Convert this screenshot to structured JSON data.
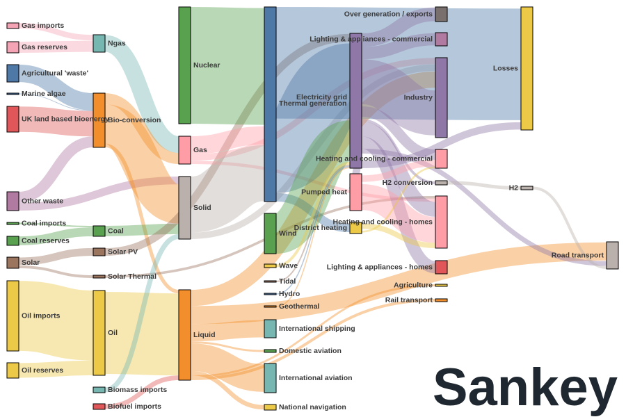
{
  "title": "Sankey",
  "chart_data": {
    "type": "sankey",
    "nodes": [
      {
        "id": "gas_imports",
        "label": "Gas imports",
        "color": "#f4a4b4"
      },
      {
        "id": "gas_reserves",
        "label": "Gas reserves",
        "color": "#f4a4b4"
      },
      {
        "id": "agri_waste",
        "label": "Agricultural 'waste'",
        "color": "#4e79a7"
      },
      {
        "id": "marine_algae",
        "label": "Marine algae",
        "color": "#4e79a7"
      },
      {
        "id": "uk_bio",
        "label": "UK land based bioenergy",
        "color": "#e15759"
      },
      {
        "id": "other_waste",
        "label": "Other waste",
        "color": "#b07aa1"
      },
      {
        "id": "coal_imports",
        "label": "Coal imports",
        "color": "#59a14f"
      },
      {
        "id": "coal_reserves",
        "label": "Coal reserves",
        "color": "#59a14f"
      },
      {
        "id": "solar",
        "label": "Solar",
        "color": "#9c755f"
      },
      {
        "id": "oil_imports",
        "label": "Oil imports",
        "color": "#edc948"
      },
      {
        "id": "oil_reserves",
        "label": "Oil reserves",
        "color": "#edc948"
      },
      {
        "id": "ngas",
        "label": "Ngas",
        "color": "#76b7b2"
      },
      {
        "id": "bio_conv",
        "label": "Bio-conversion",
        "color": "#f28e2b"
      },
      {
        "id": "coal",
        "label": "Coal",
        "color": "#59a14f"
      },
      {
        "id": "solar_pv",
        "label": "Solar PV",
        "color": "#9c755f"
      },
      {
        "id": "solar_thermal",
        "label": "Solar Thermal",
        "color": "#9c755f"
      },
      {
        "id": "oil",
        "label": "Oil",
        "color": "#edc948"
      },
      {
        "id": "biomass_imports",
        "label": "Biomass imports",
        "color": "#76b7b2"
      },
      {
        "id": "biofuel_imports",
        "label": "Biofuel imports",
        "color": "#e15759"
      },
      {
        "id": "nuclear",
        "label": "Nuclear",
        "color": "#59a14f"
      },
      {
        "id": "gas",
        "label": "Gas",
        "color": "#ff9da7"
      },
      {
        "id": "solid",
        "label": "Solid",
        "color": "#bab0ac"
      },
      {
        "id": "liquid",
        "label": "Liquid",
        "color": "#f28e2b"
      },
      {
        "id": "thermal_gen",
        "label": "Thermal generation",
        "color": "#4e79a7"
      },
      {
        "id": "wind",
        "label": "Wind",
        "color": "#59a14f"
      },
      {
        "id": "wave",
        "label": "Wave",
        "color": "#edc948"
      },
      {
        "id": "tidal",
        "label": "Tidal",
        "color": "#9c755f"
      },
      {
        "id": "hydro",
        "label": "Hydro",
        "color": "#4e79a7"
      },
      {
        "id": "geothermal",
        "label": "Geothermal",
        "color": "#f28e2b"
      },
      {
        "id": "intl_shipping",
        "label": "International shipping",
        "color": "#76b7b2"
      },
      {
        "id": "dom_aviation",
        "label": "Domestic aviation",
        "color": "#59a14f"
      },
      {
        "id": "intl_aviation",
        "label": "International aviation",
        "color": "#76b7b2"
      },
      {
        "id": "nat_navigation",
        "label": "National navigation",
        "color": "#edc948"
      },
      {
        "id": "elec_grid",
        "label": "Electricity grid",
        "color": "#8f78a8"
      },
      {
        "id": "pumped_heat",
        "label": "Pumped heat",
        "color": "#ff9da7"
      },
      {
        "id": "district_heating",
        "label": "District heating",
        "color": "#edc948"
      },
      {
        "id": "over_gen",
        "label": "Over generation / exports",
        "color": "#79706e"
      },
      {
        "id": "lighting_comm",
        "label": "Lighting & appliances - commercial",
        "color": "#b07aa1"
      },
      {
        "id": "industry",
        "label": "Industry",
        "color": "#8f78a8"
      },
      {
        "id": "heat_comm",
        "label": "Heating and cooling - commercial",
        "color": "#ff9da7"
      },
      {
        "id": "h2_conv",
        "label": "H2 conversion",
        "color": "#bab0ac"
      },
      {
        "id": "heat_homes",
        "label": "Heating and cooling - homes",
        "color": "#ff9da7"
      },
      {
        "id": "lighting_homes",
        "label": "Lighting & appliances - homes",
        "color": "#e15759"
      },
      {
        "id": "agriculture",
        "label": "Agriculture",
        "color": "#edc948"
      },
      {
        "id": "rail",
        "label": "Rail transport",
        "color": "#f28e2b"
      },
      {
        "id": "losses",
        "label": "Losses",
        "color": "#edc948"
      },
      {
        "id": "h2",
        "label": "H2",
        "color": "#bab0ac"
      },
      {
        "id": "road",
        "label": "Road transport",
        "color": "#bab0ac"
      }
    ],
    "links": [
      {
        "source": "gas_imports",
        "target": "ngas",
        "value": 40
      },
      {
        "source": "gas_reserves",
        "target": "ngas",
        "value": 82
      },
      {
        "source": "agri_waste",
        "target": "bio_conv",
        "value": 124
      },
      {
        "source": "marine_algae",
        "target": "bio_conv",
        "value": 4
      },
      {
        "source": "uk_bio",
        "target": "bio_conv",
        "value": 182
      },
      {
        "source": "other_waste",
        "target": "bio_conv",
        "value": 78
      },
      {
        "source": "other_waste",
        "target": "solid",
        "value": 56
      },
      {
        "source": "coal_imports",
        "target": "coal",
        "value": 11
      },
      {
        "source": "coal_reserves",
        "target": "coal",
        "value": 64
      },
      {
        "source": "solar",
        "target": "solar_pv",
        "value": 59
      },
      {
        "source": "solar",
        "target": "solar_thermal",
        "value": 19
      },
      {
        "source": "oil_imports",
        "target": "oil",
        "value": 505
      },
      {
        "source": "oil_reserves",
        "target": "oil",
        "value": 107
      },
      {
        "source": "ngas",
        "target": "gas",
        "value": 122
      },
      {
        "source": "bio_conv",
        "target": "gas",
        "value": 81
      },
      {
        "source": "bio_conv",
        "target": "solid",
        "value": 280
      },
      {
        "source": "bio_conv",
        "target": "liquid",
        "value": 27
      },
      {
        "source": "coal",
        "target": "solid",
        "value": 75
      },
      {
        "source": "solar_pv",
        "target": "elec_grid",
        "value": 59
      },
      {
        "source": "solar_thermal",
        "target": "heat_homes",
        "value": 19
      },
      {
        "source": "oil",
        "target": "liquid",
        "value": 612
      },
      {
        "source": "biomass_imports",
        "target": "solid",
        "value": 35
      },
      {
        "source": "biofuel_imports",
        "target": "liquid",
        "value": 35
      },
      {
        "source": "nuclear",
        "target": "thermal_gen",
        "value": 839
      },
      {
        "source": "gas",
        "target": "thermal_gen",
        "value": 133
      },
      {
        "source": "gas",
        "target": "industry",
        "value": 46
      },
      {
        "source": "gas",
        "target": "heat_homes",
        "value": 24
      },
      {
        "source": "solid",
        "target": "thermal_gen",
        "value": 400
      },
      {
        "source": "solid",
        "target": "industry",
        "value": 46
      },
      {
        "source": "liquid",
        "target": "industry",
        "value": 121
      },
      {
        "source": "liquid",
        "target": "road",
        "value": 135
      },
      {
        "source": "liquid",
        "target": "intl_shipping",
        "value": 128
      },
      {
        "source": "liquid",
        "target": "dom_aviation",
        "value": 15
      },
      {
        "source": "liquid",
        "target": "intl_aviation",
        "value": 206
      },
      {
        "source": "liquid",
        "target": "nat_navigation",
        "value": 33
      },
      {
        "source": "liquid",
        "target": "agriculture",
        "value": 15
      },
      {
        "source": "liquid",
        "target": "rail",
        "value": 21
      },
      {
        "source": "thermal_gen",
        "target": "losses",
        "value": 787
      },
      {
        "source": "thermal_gen",
        "target": "elec_grid",
        "value": 525
      },
      {
        "source": "thermal_gen",
        "target": "district_heating",
        "value": 60
      },
      {
        "source": "wind",
        "target": "elec_grid",
        "value": 289
      },
      {
        "source": "wave",
        "target": "elec_grid",
        "value": 19
      },
      {
        "source": "tidal",
        "target": "elec_grid",
        "value": 10
      },
      {
        "source": "hydro",
        "target": "elec_grid",
        "value": 7
      },
      {
        "source": "geothermal",
        "target": "elec_grid",
        "value": 7
      },
      {
        "source": "elec_grid",
        "target": "over_gen",
        "value": 104
      },
      {
        "source": "elec_grid",
        "target": "lighting_comm",
        "value": 93
      },
      {
        "source": "elec_grid",
        "target": "industry",
        "value": 342
      },
      {
        "source": "elec_grid",
        "target": "heat_comm",
        "value": 113
      },
      {
        "source": "elec_grid",
        "target": "h2_conv",
        "value": 20
      },
      {
        "source": "elec_grid",
        "target": "heat_homes",
        "value": 113
      },
      {
        "source": "elec_grid",
        "target": "lighting_homes",
        "value": 93
      },
      {
        "source": "elec_grid",
        "target": "road",
        "value": 37
      },
      {
        "source": "elec_grid",
        "target": "pumped_heat",
        "value": 56
      },
      {
        "source": "elec_grid",
        "target": "losses",
        "value": 56
      },
      {
        "source": "pumped_heat",
        "target": "heat_comm",
        "value": 70
      },
      {
        "source": "pumped_heat",
        "target": "heat_homes",
        "value": 193
      },
      {
        "source": "district_heating",
        "target": "heat_homes",
        "value": 40
      },
      {
        "source": "district_heating",
        "target": "heat_comm",
        "value": 20
      },
      {
        "source": "h2_conv",
        "target": "h2",
        "value": 20
      },
      {
        "source": "h2",
        "target": "road",
        "value": 20
      }
    ]
  }
}
